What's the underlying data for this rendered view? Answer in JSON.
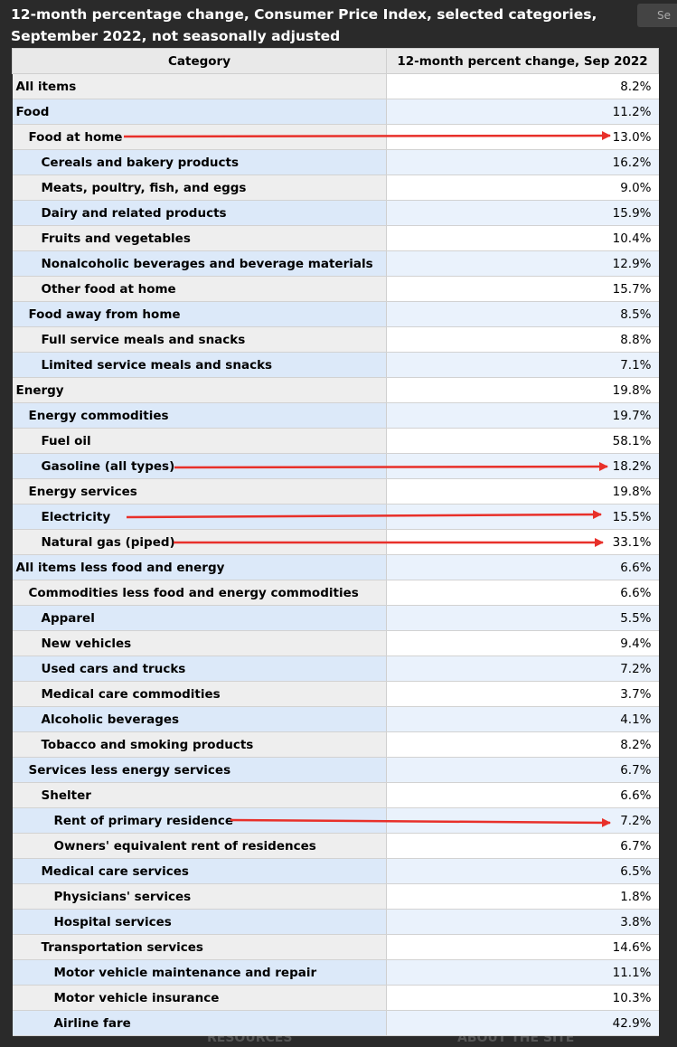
{
  "title": "12-month percentage change, Consumer Price Index, selected categories, September 2022, not seasonally adjusted",
  "search_placeholder": "Se",
  "footer_links": [
    "RESOURCES",
    "ABOUT THE SITE"
  ],
  "table": {
    "header": [
      "Category",
      "12-month percent change, Sep 2022"
    ],
    "rows": [
      {
        "label": "All items",
        "level": 0,
        "value": "8.2%"
      },
      {
        "label": "Food",
        "level": 0,
        "value": "11.2%"
      },
      {
        "label": "Food at home",
        "level": 1,
        "value": "13.0%"
      },
      {
        "label": "Cereals and bakery products",
        "level": 2,
        "value": "16.2%"
      },
      {
        "label": "Meats, poultry, fish, and eggs",
        "level": 2,
        "value": "9.0%"
      },
      {
        "label": "Dairy and related products",
        "level": 2,
        "value": "15.9%"
      },
      {
        "label": "Fruits and vegetables",
        "level": 2,
        "value": "10.4%"
      },
      {
        "label": "Nonalcoholic beverages and beverage materials",
        "level": 2,
        "value": "12.9%"
      },
      {
        "label": "Other food at home",
        "level": 2,
        "value": "15.7%"
      },
      {
        "label": "Food away from home",
        "level": 1,
        "value": "8.5%"
      },
      {
        "label": "Full service meals and snacks",
        "level": 2,
        "value": "8.8%"
      },
      {
        "label": "Limited service meals and snacks",
        "level": 2,
        "value": "7.1%"
      },
      {
        "label": "Energy",
        "level": 0,
        "value": "19.8%"
      },
      {
        "label": "Energy commodities",
        "level": 1,
        "value": "19.7%"
      },
      {
        "label": "Fuel oil",
        "level": 2,
        "value": "58.1%"
      },
      {
        "label": "Gasoline (all types)",
        "level": 2,
        "value": "18.2%"
      },
      {
        "label": "Energy services",
        "level": 1,
        "value": "19.8%"
      },
      {
        "label": "Electricity",
        "level": 2,
        "value": "15.5%"
      },
      {
        "label": "Natural gas (piped)",
        "level": 2,
        "value": "33.1%"
      },
      {
        "label": "All items less food and energy",
        "level": 0,
        "value": "6.6%"
      },
      {
        "label": "Commodities less food and energy commodities",
        "level": 1,
        "value": "6.6%"
      },
      {
        "label": "Apparel",
        "level": 2,
        "value": "5.5%"
      },
      {
        "label": "New vehicles",
        "level": 2,
        "value": "9.4%"
      },
      {
        "label": "Used cars and trucks",
        "level": 2,
        "value": "7.2%"
      },
      {
        "label": "Medical care commodities",
        "level": 2,
        "value": "3.7%"
      },
      {
        "label": "Alcoholic beverages",
        "level": 2,
        "value": "4.1%"
      },
      {
        "label": "Tobacco and smoking products",
        "level": 2,
        "value": "8.2%"
      },
      {
        "label": "Services less energy services",
        "level": 1,
        "value": "6.7%"
      },
      {
        "label": "Shelter",
        "level": 2,
        "value": "6.6%"
      },
      {
        "label": "Rent of primary residence",
        "level": 3,
        "value": "7.2%"
      },
      {
        "label": "Owners' equivalent rent of residences",
        "level": 3,
        "value": "6.7%"
      },
      {
        "label": "Medical care services",
        "level": 2,
        "value": "6.5%"
      },
      {
        "label": "Physicians' services",
        "level": 3,
        "value": "1.8%"
      },
      {
        "label": "Hospital services",
        "level": 3,
        "value": "3.8%"
      },
      {
        "label": "Transportation services",
        "level": 2,
        "value": "14.6%"
      },
      {
        "label": "Motor vehicle maintenance and repair",
        "level": 3,
        "value": "11.1%"
      },
      {
        "label": "Motor vehicle insurance",
        "level": 3,
        "value": "10.3%"
      },
      {
        "label": "Airline fare",
        "level": 3,
        "value": "42.9%"
      }
    ]
  }
}
